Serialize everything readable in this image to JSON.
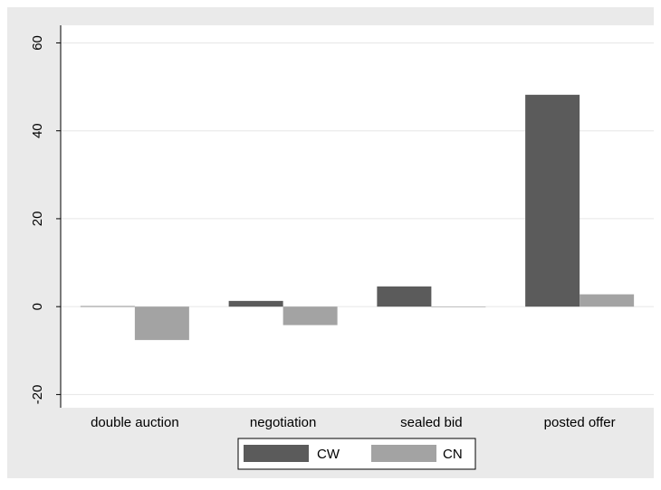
{
  "chart_data": {
    "type": "bar",
    "title": "",
    "xlabel": "",
    "ylabel": "",
    "categories": [
      "double auction",
      "negotiation",
      "sealed bid",
      "posted offer"
    ],
    "series": [
      {
        "name": "CW",
        "values": [
          0.1,
          1.3,
          4.6,
          48.2
        ]
      },
      {
        "name": "CN",
        "values": [
          -7.6,
          -4.2,
          0,
          2.8
        ]
      }
    ],
    "ylim": [
      -23,
      64
    ],
    "yticks": [
      -20,
      0,
      20,
      40,
      60
    ],
    "grid": true,
    "legend_position": "bottom",
    "colors": {
      "CW": "#5b5b5b",
      "CN": "#a3a3a3",
      "background_outer": "#eaeaea",
      "plot_background": "#ffffff",
      "gridline": "#e6e6e6"
    }
  }
}
